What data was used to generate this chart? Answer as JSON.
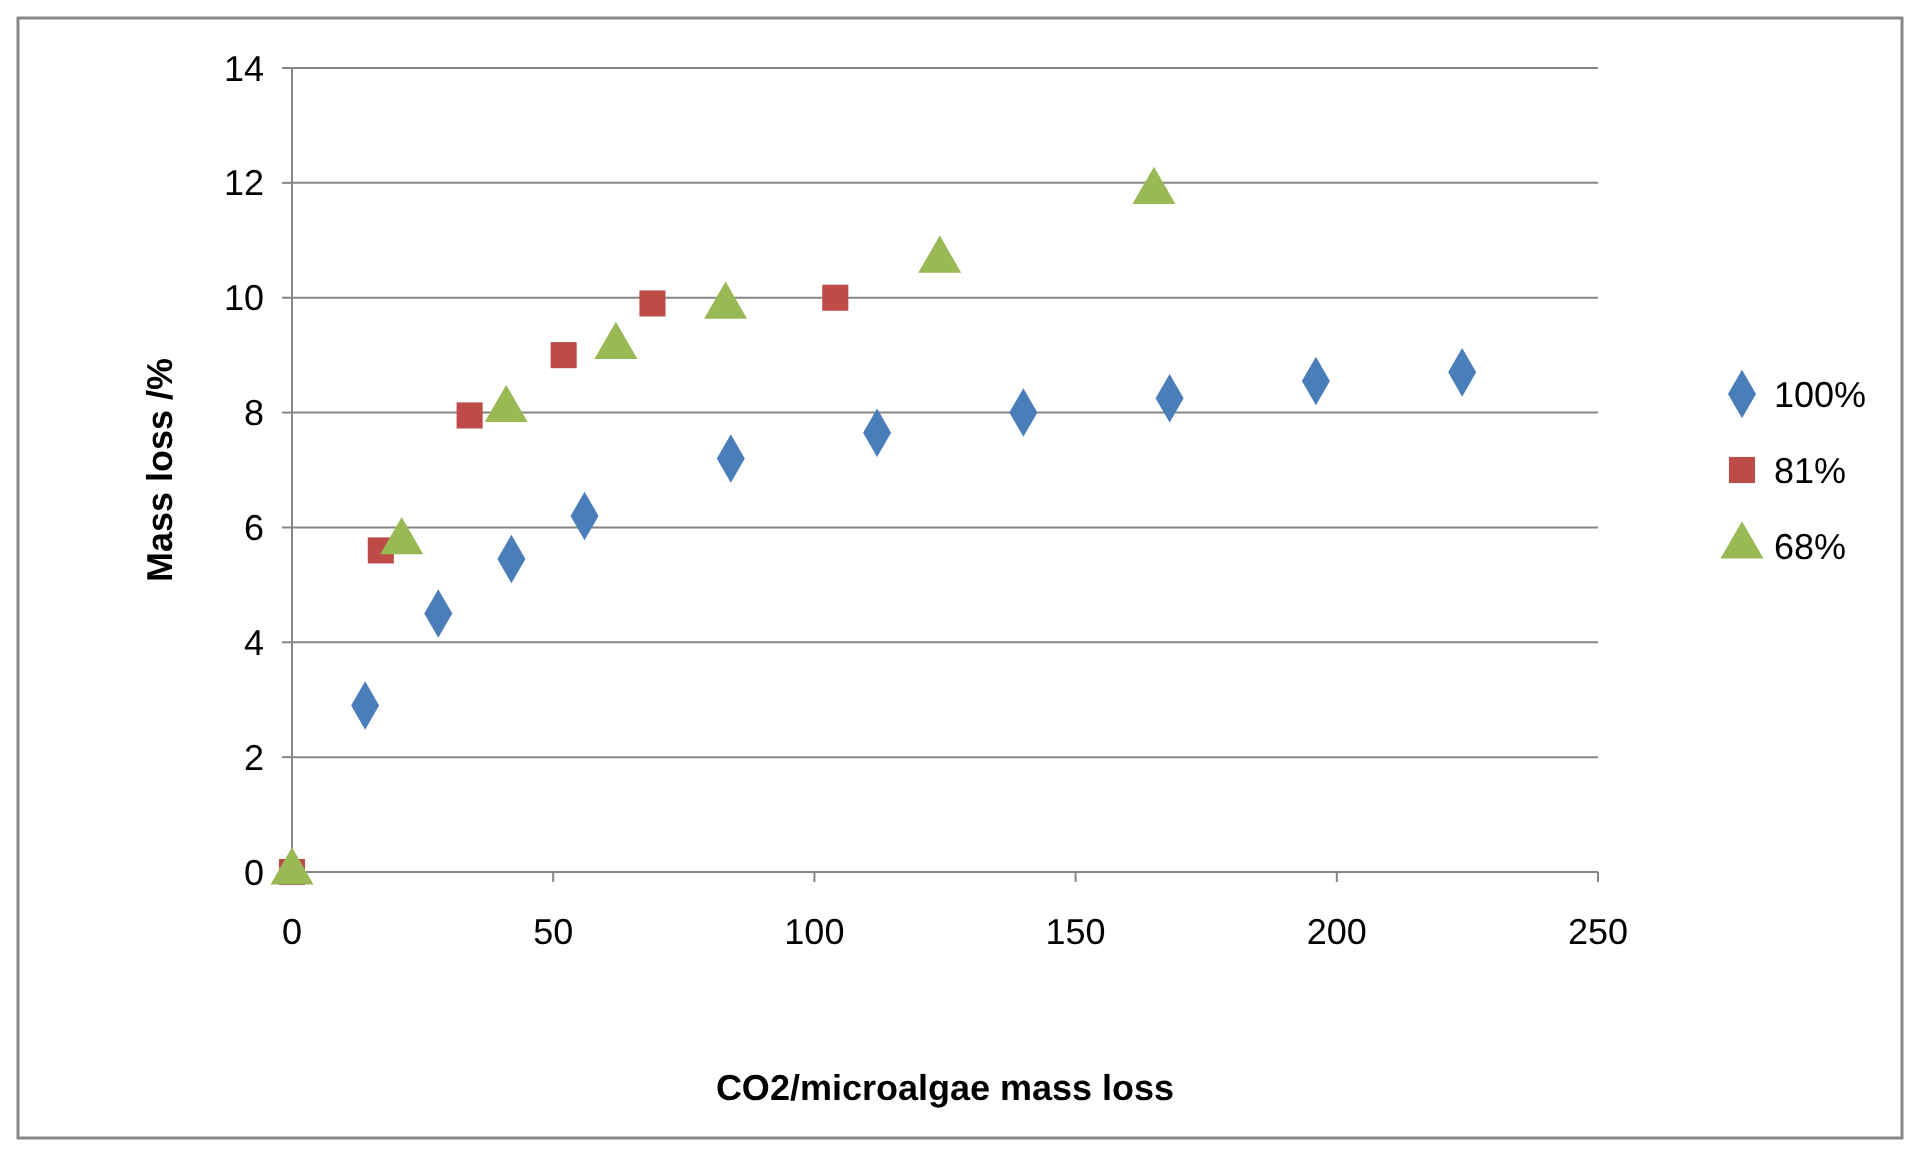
{
  "chart_data": {
    "type": "scatter",
    "xlabel": "CO2/microalgae mass loss",
    "ylabel": "Mass loss /%",
    "xlim": [
      0,
      250
    ],
    "xticks": [
      0,
      50,
      100,
      150,
      200,
      250
    ],
    "ylim": [
      0,
      14
    ],
    "yticks": [
      0,
      2,
      4,
      6,
      8,
      10,
      12,
      14
    ],
    "grid": "y",
    "legend": "right",
    "series": [
      {
        "name": "100%",
        "color": "#4a7ebb",
        "marker": "diamond",
        "x": [
          14,
          28,
          42,
          56,
          84,
          112,
          140,
          168,
          196,
          224
        ],
        "values": [
          2.9,
          4.5,
          5.45,
          6.2,
          7.2,
          7.65,
          8.0,
          8.25,
          8.55,
          8.7
        ]
      },
      {
        "name": "81%",
        "color": "#be4b48",
        "marker": "square",
        "x": [
          0,
          17,
          34,
          52,
          69,
          104
        ],
        "values": [
          0,
          5.6,
          7.95,
          9.0,
          9.9,
          10.0
        ]
      },
      {
        "name": "68%",
        "color": "#98b954",
        "marker": "triangle",
        "x": [
          0,
          21,
          41,
          62,
          83,
          124,
          165
        ],
        "values": [
          0,
          5.75,
          8.05,
          9.15,
          9.85,
          10.65,
          11.85
        ]
      }
    ]
  }
}
